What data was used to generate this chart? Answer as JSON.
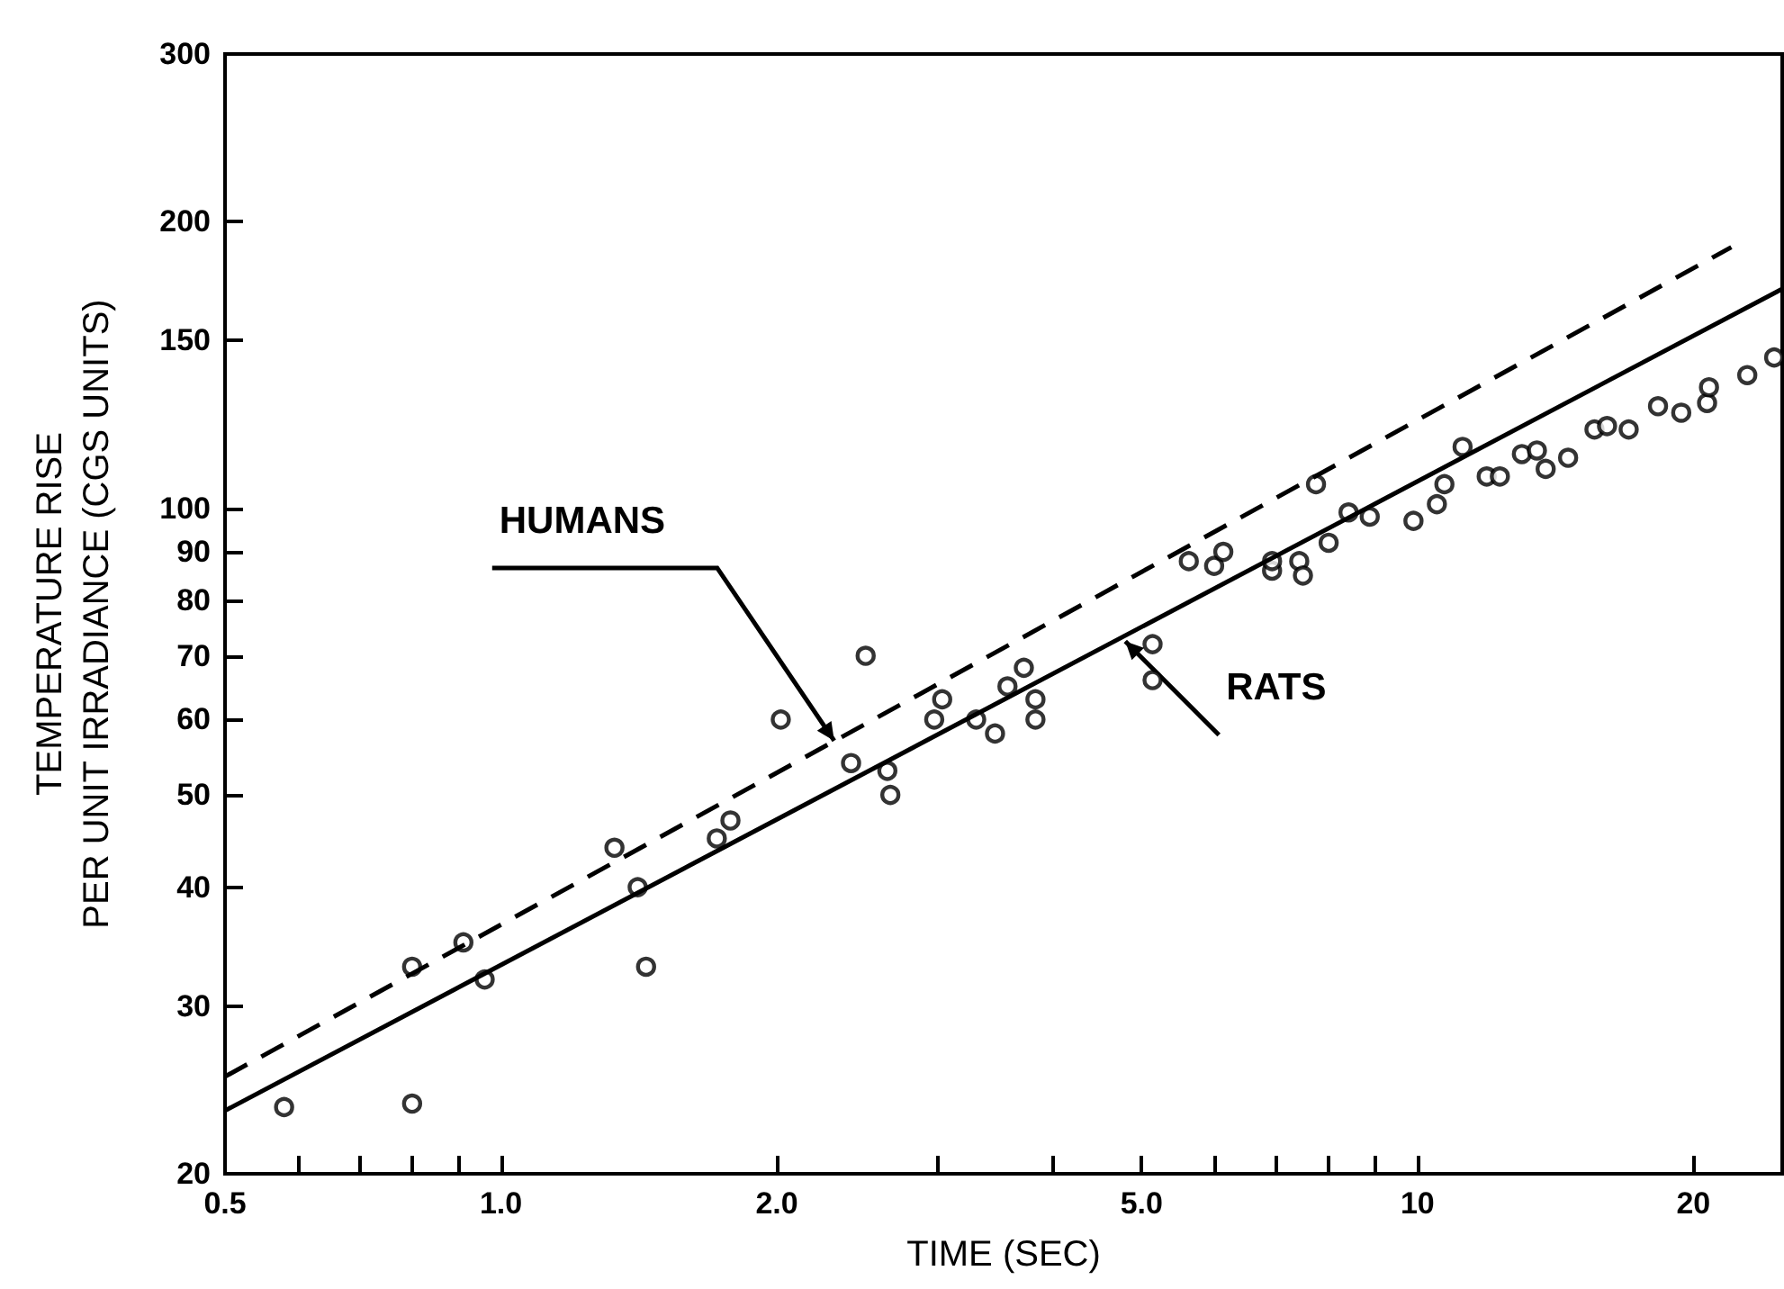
{
  "chart_data": {
    "type": "scatter",
    "xlabel": "TIME (SEC)",
    "ylabel": "TEMPERATURE RISE\nPER UNIT IRRADIANCE (CGS UNITS)",
    "log": "xy",
    "grid": false,
    "xlim": [
      0.5,
      25
    ],
    "ylim": [
      20,
      300
    ],
    "xticks": [
      {
        "value": 0.5,
        "label": "0.5"
      },
      {
        "value": 0.6,
        "label": null
      },
      {
        "value": 0.7,
        "label": null
      },
      {
        "value": 0.8,
        "label": null
      },
      {
        "value": 0.9,
        "label": null
      },
      {
        "value": 1,
        "label": "1.0"
      },
      {
        "value": 2,
        "label": "2.0"
      },
      {
        "value": 3,
        "label": null
      },
      {
        "value": 4,
        "label": null
      },
      {
        "value": 5,
        "label": "5.0"
      },
      {
        "value": 6,
        "label": null
      },
      {
        "value": 7,
        "label": null
      },
      {
        "value": 8,
        "label": null
      },
      {
        "value": 9,
        "label": null
      },
      10,
      20
    ],
    "yticks": [
      20,
      30,
      40,
      50,
      60,
      70,
      80,
      90,
      100,
      150,
      200,
      300
    ],
    "series": [
      {
        "marker": "circle",
        "color": "#000000",
        "x": [
          0.58,
          0.8,
          0.8,
          0.91,
          0.96,
          1.33,
          1.41,
          1.44,
          1.72,
          1.78,
          2.02,
          2.41,
          2.5,
          2.64,
          2.66,
          2.97,
          3.03,
          3.3,
          3.46,
          3.57,
          3.72,
          3.83,
          3.83,
          5.14,
          5.14,
          5.63,
          6.0,
          6.14,
          6.94,
          6.94,
          7.43,
          7.5,
          7.75,
          8.0,
          8.41,
          8.87,
          9.9,
          10.5,
          10.7,
          11.2,
          11.9,
          12.3,
          13.0,
          13.5,
          13.8,
          14.6,
          15.6,
          16.1,
          17.0,
          18.3,
          19.4,
          20.7,
          20.8,
          22.9,
          24.5
        ],
        "values": [
          23.5,
          23.7,
          33,
          35,
          32,
          44,
          40,
          33,
          45,
          47,
          60,
          54,
          70,
          53,
          50,
          60,
          63,
          60,
          58,
          65,
          68,
          63,
          60,
          72,
          66,
          88,
          87,
          90,
          86,
          88,
          88,
          85,
          106,
          92,
          99,
          98,
          97,
          101,
          106,
          116,
          108,
          108,
          114,
          115,
          110,
          113,
          121,
          122,
          121,
          128,
          126,
          129,
          134,
          138,
          144
        ]
      },
      {
        "type": "line",
        "line_style": "solid",
        "marker": "none",
        "color": "#000000",
        "x": [
          0.5,
          25
        ],
        "values": [
          23.3,
          170
        ]
      },
      {
        "type": "line",
        "line_style": "dashed",
        "marker": "none",
        "color": "#000000",
        "x": [
          0.5,
          22
        ],
        "values": [
          25.3,
          188
        ]
      }
    ],
    "annotations": [
      {
        "text": "HUMANS",
        "x": 2.31,
        "y": 57
      },
      {
        "text": "RATS",
        "x": 4.8,
        "y": 72.5
      }
    ]
  }
}
